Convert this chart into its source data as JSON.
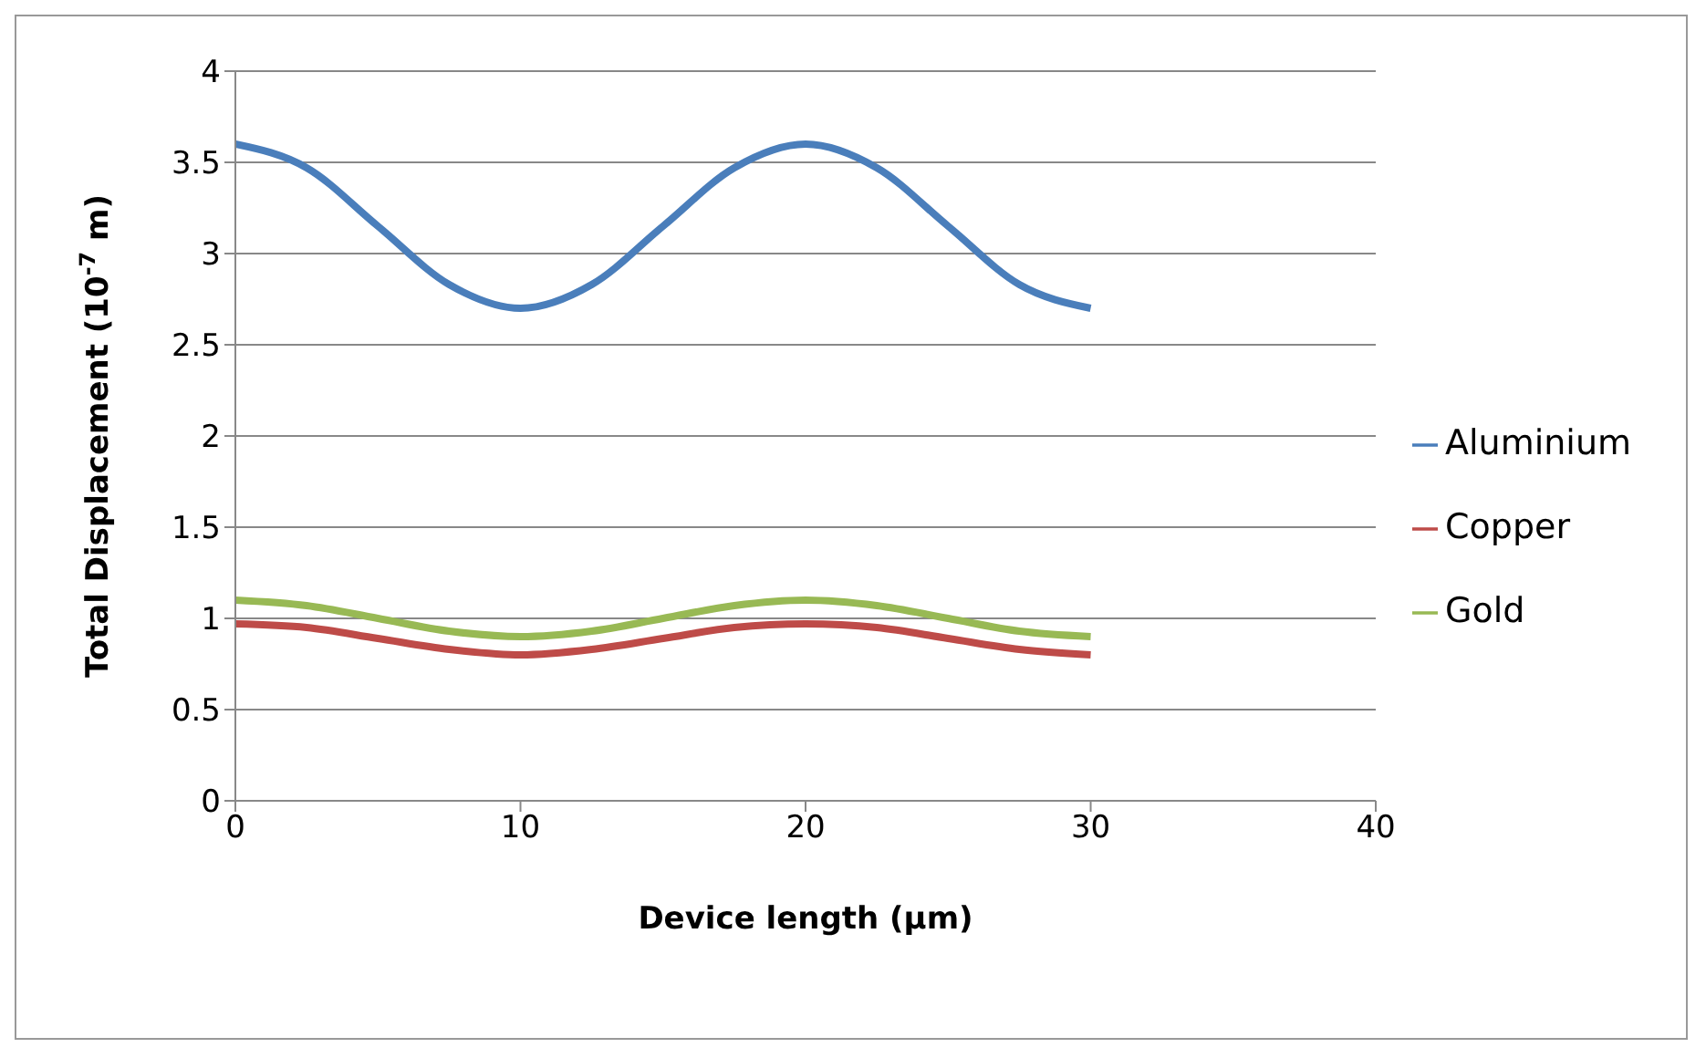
{
  "chart_data": {
    "type": "line",
    "xlabel": "Device length (µm)",
    "ylabel": "Total Displacement (10$^{-7}$ m)",
    "x": [
      0,
      2.5,
      5,
      7.5,
      10,
      12.5,
      15,
      17.5,
      20,
      22.5,
      25,
      27.5,
      30
    ],
    "series": [
      {
        "name": "Aluminium",
        "color": "#4a7ebb",
        "values": [
          3.6,
          3.47,
          3.15,
          2.83,
          2.7,
          2.83,
          3.15,
          3.47,
          3.6,
          3.47,
          3.15,
          2.83,
          2.7
        ]
      },
      {
        "name": "Copper",
        "color": "#be4b48",
        "values": [
          0.97,
          0.95,
          0.89,
          0.83,
          0.8,
          0.83,
          0.89,
          0.95,
          0.97,
          0.95,
          0.89,
          0.83,
          0.8
        ]
      },
      {
        "name": "Gold",
        "color": "#98b954",
        "values": [
          1.1,
          1.07,
          1.0,
          0.93,
          0.9,
          0.93,
          1.0,
          1.07,
          1.1,
          1.07,
          1.0,
          0.93,
          0.9
        ]
      }
    ],
    "xlim": [
      0,
      40
    ],
    "xticks": [
      0,
      10,
      20,
      30,
      40
    ],
    "ylim": [
      0,
      4
    ],
    "yticks": [
      0,
      0.5,
      1,
      1.5,
      2,
      2.5,
      3,
      3.5,
      4
    ],
    "grid": "y",
    "legend": "right",
    "marker": "none",
    "line_style": "solid"
  }
}
